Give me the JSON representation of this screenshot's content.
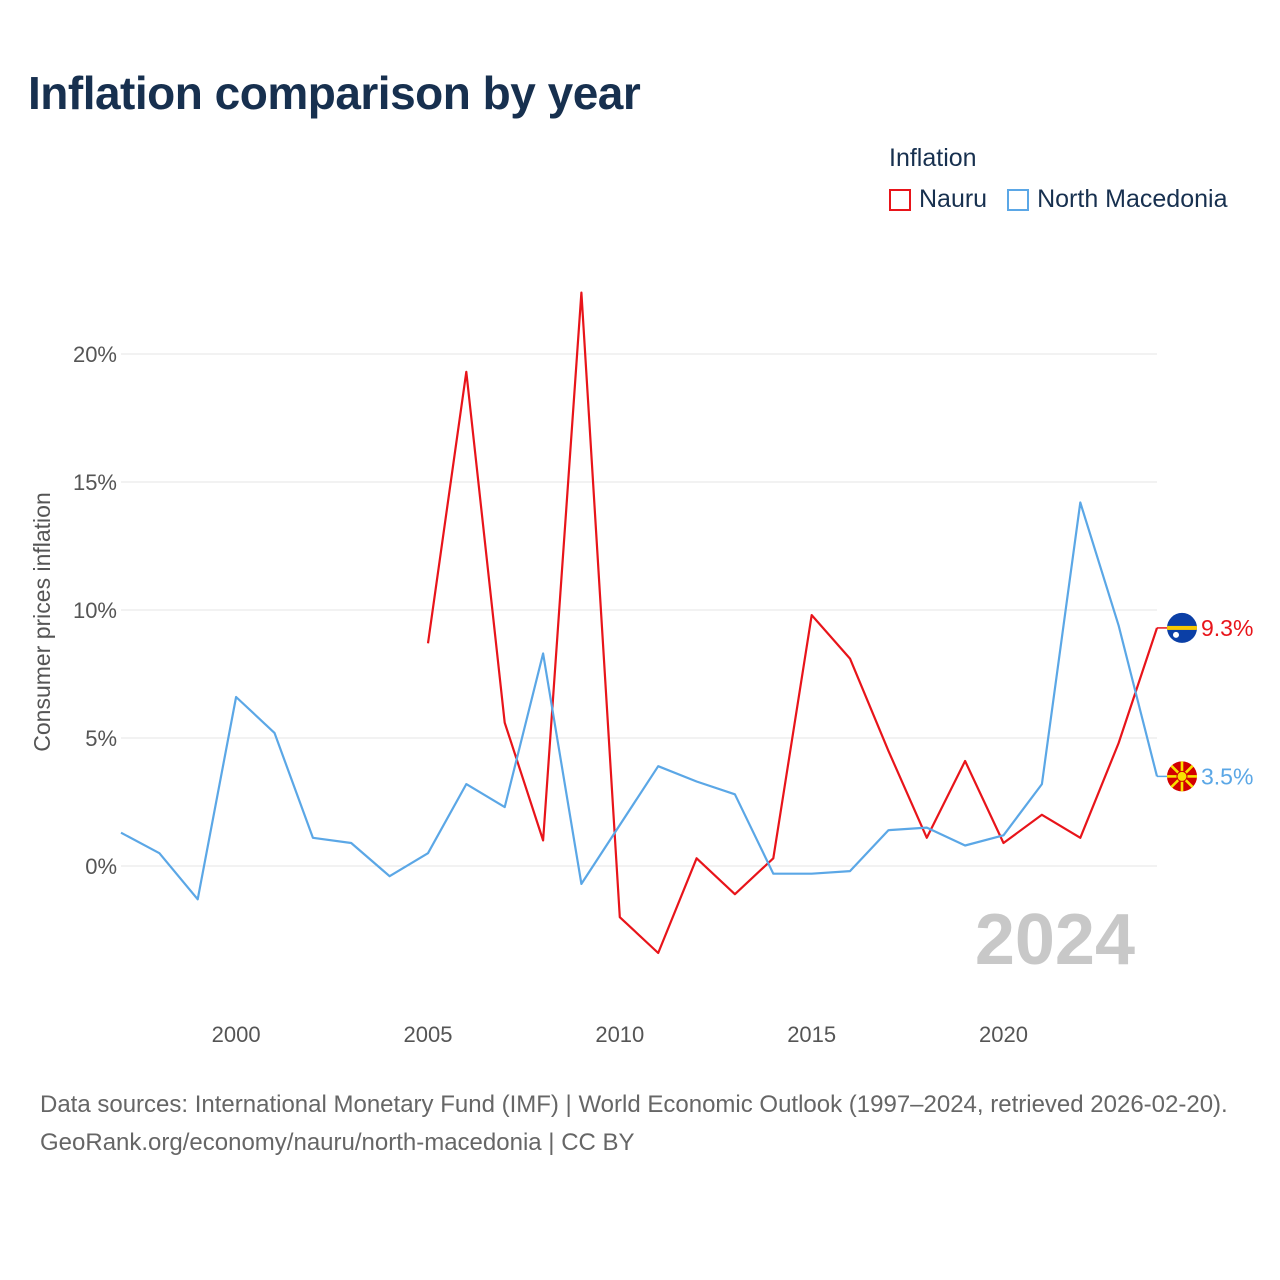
{
  "title": "Inflation comparison by year",
  "legend": {
    "title": "Inflation",
    "items": [
      {
        "label": "Nauru",
        "color": "#e8141a"
      },
      {
        "label": "North Macedonia",
        "color": "#5ba7e6"
      }
    ]
  },
  "footer": {
    "sources": "Data sources: International Monetary Fund (IMF) | World Economic Outlook (1997–2024, retrieved 2026-02-20).",
    "credit": "GeoRank.org/economy/nauru/north-macedonia | CC BY"
  },
  "chart_data": {
    "type": "line",
    "title": "Inflation comparison by year",
    "xlabel": "",
    "ylabel": "Consumer prices inflation",
    "xlim": [
      1997,
      2024
    ],
    "ylim": [
      -5,
      23
    ],
    "x_ticks": [
      2000,
      2005,
      2010,
      2015,
      2020
    ],
    "x_tick_labels": [
      "2000",
      "2005",
      "2010",
      "2015",
      "2020"
    ],
    "y_ticks": [
      0,
      5,
      10,
      15,
      20
    ],
    "y_tick_labels": [
      "0%",
      "5%",
      "10%",
      "15%",
      "20%"
    ],
    "grid": true,
    "legend_position": "top-right",
    "current_year_label": "2024",
    "series": [
      {
        "name": "Nauru",
        "color": "#e8141a",
        "x": [
          2005,
          2006,
          2007,
          2008,
          2009,
          2010,
          2011,
          2012,
          2013,
          2014,
          2015,
          2016,
          2017,
          2018,
          2019,
          2020,
          2021,
          2022,
          2023,
          2024
        ],
        "values": [
          8.7,
          19.3,
          5.6,
          1.0,
          22.4,
          -2.0,
          -3.4,
          0.3,
          -1.1,
          0.3,
          9.8,
          8.1,
          4.5,
          1.1,
          4.1,
          0.9,
          2.0,
          1.1,
          4.8,
          9.3
        ],
        "end_label": "9.3%",
        "flag": "nauru-flag-icon"
      },
      {
        "name": "North Macedonia",
        "color": "#5ba7e6",
        "x": [
          1997,
          1998,
          1999,
          2000,
          2001,
          2002,
          2003,
          2004,
          2005,
          2006,
          2007,
          2008,
          2009,
          2010,
          2011,
          2012,
          2013,
          2014,
          2015,
          2016,
          2017,
          2018,
          2019,
          2020,
          2021,
          2022,
          2023,
          2024
        ],
        "values": [
          1.3,
          0.5,
          -1.3,
          6.6,
          5.2,
          1.1,
          0.9,
          -0.4,
          0.5,
          3.2,
          2.3,
          8.3,
          -0.7,
          1.6,
          3.9,
          3.3,
          2.8,
          -0.3,
          -0.3,
          -0.2,
          1.4,
          1.5,
          0.8,
          1.2,
          3.2,
          14.2,
          9.4,
          3.5
        ],
        "end_label": "3.5%",
        "flag": "north-macedonia-flag-icon"
      }
    ]
  }
}
